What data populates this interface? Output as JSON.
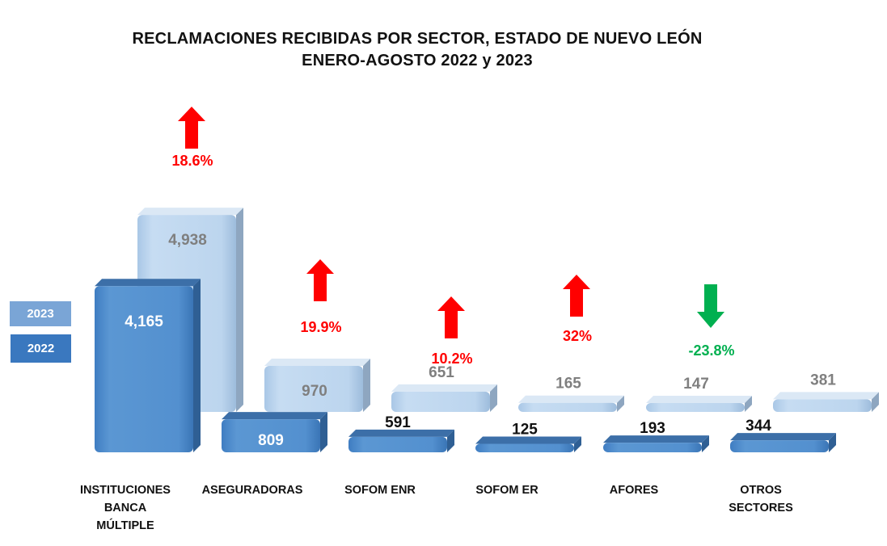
{
  "chart_data": {
    "type": "bar",
    "title": "RECLAMACIONES RECIBIDAS POR SECTOR, ESTADO DE NUEVO LEÓN",
    "subtitle": "ENERO-AGOSTO 2022 y 2023",
    "xlabel": "",
    "ylabel": "",
    "categories": [
      [
        "INSTITUCIONES",
        "BANCA",
        "MÚLTIPLE"
      ],
      [
        "ASEGURADORAS"
      ],
      [
        "SOFOM ENR"
      ],
      [
        "SOFOM ER"
      ],
      [
        "AFORES"
      ],
      [
        "OTROS",
        "SECTORES"
      ]
    ],
    "series": [
      {
        "name": "2022",
        "color": "#4a87c8",
        "values": [
          4165,
          809,
          591,
          125,
          193,
          344
        ],
        "labels": [
          "4,165",
          "809",
          "591",
          "125",
          "193",
          "344"
        ]
      },
      {
        "name": "2023",
        "color": "#b7d2ec",
        "values": [
          4938,
          970,
          651,
          165,
          147,
          381
        ],
        "labels": [
          "4,938",
          "970",
          "651",
          "165",
          "147",
          "381"
        ]
      }
    ],
    "changes": [
      {
        "label": "18.6%",
        "value": 18.6,
        "direction": "up",
        "color": "#ff0000"
      },
      {
        "label": "19.9%",
        "value": 19.9,
        "direction": "up",
        "color": "#ff0000"
      },
      {
        "label": "10.2%",
        "value": 10.2,
        "direction": "up",
        "color": "#ff0000"
      },
      {
        "label": "32%",
        "value": 32,
        "direction": "up",
        "color": "#ff0000"
      },
      {
        "label": "-23.8%",
        "value": -23.8,
        "direction": "down",
        "color": "#00b050"
      },
      null
    ],
    "legend": {
      "position": "left",
      "entries": [
        "2023",
        "2022"
      ]
    },
    "grid": false
  }
}
